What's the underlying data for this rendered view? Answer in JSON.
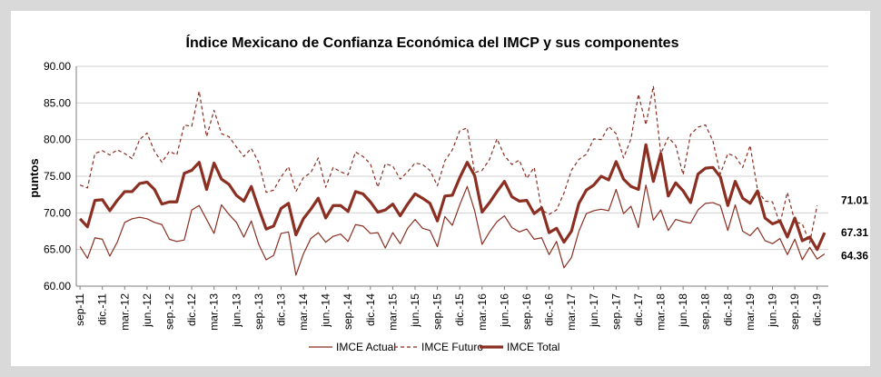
{
  "chart_data": {
    "type": "line",
    "title": "Índice Mexicano de Confianza Económica del IMCP y sus componentes",
    "ylabel": "puntos",
    "xlabel": "",
    "ylim": [
      60,
      90
    ],
    "yticks": [
      "60.00",
      "65.00",
      "70.00",
      "75.00",
      "80.00",
      "85.00",
      "90.00"
    ],
    "ytick_values": [
      60,
      65,
      70,
      75,
      80,
      85,
      90
    ],
    "start": "sep-11",
    "xticks": [
      "sep-11",
      "dic.-11",
      "mar.-12",
      "jun.-12",
      "sep.-12",
      "dic.-12",
      "mar.-13",
      "jun.-13",
      "sep.-13",
      "dic.-13",
      "mar.-14",
      "jun.-14",
      "sep.-14",
      "dic.-14",
      "mar.-15",
      "jun.-15",
      "sep.-15",
      "dic.-15",
      "mar.-16",
      "jun.-16",
      "sep.-16",
      "dic.-16",
      "mar.-17",
      "jun.-17",
      "sep.-17",
      "dic.-17",
      "mar.-18",
      "jun.-18",
      "sep.-18",
      "dic.-18",
      "mar.-19",
      "jun.-19",
      "sep.-19",
      "dic.-19"
    ],
    "series": [
      {
        "name": "IMCE Actual",
        "color": "#8b2f22",
        "style": "thin",
        "end_label": "64.36",
        "values": [
          65.4,
          63.8,
          66.6,
          66.4,
          64.1,
          66.0,
          68.7,
          69.2,
          69.4,
          69.2,
          68.7,
          68.4,
          66.4,
          66.1,
          66.3,
          70.4,
          71.0,
          69.1,
          67.2,
          71.1,
          69.8,
          68.7,
          66.7,
          68.9,
          65.7,
          63.6,
          64.2,
          67.2,
          67.4,
          61.5,
          64.4,
          66.5,
          67.3,
          66.0,
          66.8,
          67.1,
          66.1,
          68.4,
          68.2,
          67.2,
          67.3,
          65.2,
          67.3,
          65.8,
          67.9,
          69.1,
          67.9,
          67.6,
          65.4,
          69.5,
          68.3,
          71.1,
          73.6,
          70.3,
          65.7,
          67.4,
          68.8,
          69.6,
          68.0,
          67.4,
          67.8,
          66.4,
          66.6,
          64.3,
          66.1,
          62.5,
          63.9,
          67.5,
          69.9,
          70.3,
          70.5,
          70.3,
          73.2,
          69.9,
          70.9,
          68.0,
          73.8,
          69.0,
          70.4,
          67.6,
          69.1,
          68.8,
          68.6,
          70.4,
          71.3,
          71.4,
          71.0,
          67.6,
          71.1,
          67.5,
          66.9,
          68.0,
          66.2,
          65.8,
          66.5,
          64.3,
          66.4,
          63.6,
          65.3,
          63.7,
          64.4
        ]
      },
      {
        "name": "IMCE Futuro",
        "color": "#8b2f22",
        "style": "dashed",
        "end_label": "71.01",
        "values": [
          73.8,
          73.4,
          78.1,
          78.5,
          77.9,
          78.6,
          78.1,
          77.4,
          80.0,
          80.9,
          78.4,
          76.9,
          78.4,
          77.9,
          82.0,
          81.8,
          86.6,
          80.4,
          84.0,
          80.8,
          80.4,
          79.0,
          77.7,
          78.8,
          76.9,
          72.8,
          73.1,
          74.9,
          76.3,
          72.9,
          74.8,
          75.5,
          77.5,
          73.5,
          76.2,
          75.6,
          75.2,
          78.3,
          77.7,
          76.7,
          73.5,
          76.7,
          76.4,
          74.6,
          75.6,
          76.8,
          76.6,
          75.8,
          73.7,
          77.1,
          78.6,
          81.2,
          81.6,
          75.5,
          75.8,
          77.3,
          80.1,
          77.8,
          76.6,
          77.2,
          74.7,
          76.2,
          70.4,
          69.8,
          70.4,
          72.7,
          75.8,
          77.3,
          78.0,
          80.1,
          80.0,
          81.8,
          80.8,
          77.5,
          80.1,
          86.2,
          82.0,
          87.3,
          78.1,
          80.3,
          79.2,
          75.2,
          80.7,
          81.7,
          82.0,
          79.8,
          75.3,
          78.1,
          77.7,
          76.2,
          79.2,
          73.1,
          71.6,
          71.5,
          68.5,
          72.8,
          68.8,
          68.5,
          65.9,
          71.0
        ]
      },
      {
        "name": "IMCE Total",
        "color": "#8b2f22",
        "style": "thick",
        "end_label": "67.31",
        "values": [
          69.2,
          68.1,
          71.7,
          71.8,
          70.3,
          71.7,
          72.9,
          72.9,
          74.0,
          74.2,
          73.2,
          71.2,
          71.5,
          71.5,
          75.4,
          75.8,
          76.9,
          73.2,
          76.8,
          74.6,
          73.9,
          72.4,
          71.6,
          73.6,
          70.6,
          67.8,
          68.2,
          70.6,
          71.3,
          67.0,
          69.2,
          70.5,
          72.0,
          69.3,
          71.0,
          71.0,
          70.2,
          72.9,
          72.6,
          71.5,
          70.1,
          70.4,
          71.2,
          69.6,
          71.2,
          72.6,
          72.0,
          71.3,
          68.9,
          72.3,
          72.4,
          74.8,
          76.9,
          75.1,
          70.1,
          71.4,
          72.9,
          74.3,
          72.2,
          71.6,
          71.7,
          69.9,
          70.7,
          67.3,
          67.9,
          66.0,
          67.5,
          71.3,
          73.1,
          73.8,
          75.0,
          74.5,
          77.0,
          74.6,
          73.6,
          73.2,
          79.3,
          74.3,
          78.1,
          72.3,
          74.1,
          73.0,
          71.4,
          75.3,
          76.1,
          76.2,
          74.9,
          71.0,
          74.3,
          72.0,
          71.3,
          73.0,
          69.3,
          68.5,
          68.9,
          66.7,
          69.3,
          66.2,
          66.7,
          65.0,
          67.3
        ]
      }
    ]
  }
}
